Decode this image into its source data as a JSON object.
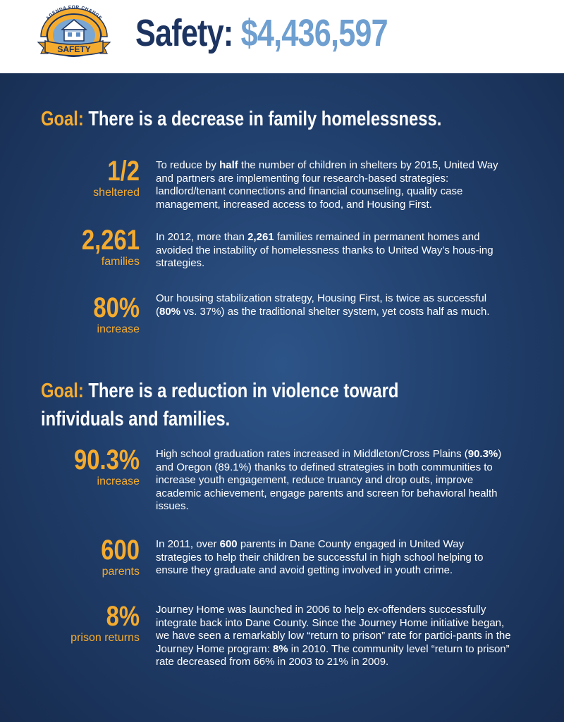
{
  "header": {
    "badge": {
      "top_text": "AGENDA FOR CHANGE",
      "label": "SAFETY"
    },
    "title_word": "Safety:",
    "title_amount": "$4,436,597"
  },
  "colors": {
    "navy": "#1d3461",
    "accent": "#f5ab2e",
    "amount_blue": "#6e9fd0",
    "bg": "#1f3a63"
  },
  "goal1": {
    "label": "Goal:",
    "text": "There is a decrease in family homelessness.",
    "stats": [
      {
        "number": "1/2",
        "unit": "sheltered",
        "pre": "To reduce by ",
        "bold": "half",
        "post": " the number of children in shelters by 2015, United Way and partners are implementing four research-based strategies: landlord/tenant connections and financial counseling, quality case management, increased access to food, and Housing First."
      },
      {
        "number": "2,261",
        "unit": "families",
        "pre": "In 2012, more than ",
        "bold": "2,261",
        "post": " families remained in permanent homes and avoided the instability of homelessness thanks to United Way’s hous-ing strategies."
      },
      {
        "number": "80%",
        "unit": "increase",
        "pre": "Our housing stabilization strategy, Housing First, is twice as successful (",
        "bold": "80%",
        "post": " vs. 37%) as the traditional shelter system, yet costs half as much."
      }
    ]
  },
  "goal2": {
    "label": "Goal:",
    "text_line1": "There is a reduction in violence toward",
    "text_line2": "infividuals and families.",
    "stats": [
      {
        "number": "90.3%",
        "unit": "increase",
        "pre": "High school graduation rates increased in Middleton/Cross Plains (",
        "bold": "90.3%",
        "post": ") and Oregon (89.1%) thanks to defined strategies in both communities to increase youth engagement, reduce truancy and drop outs, improve academic achievement, engage parents and screen for behavioral health issues."
      },
      {
        "number": "600",
        "unit": "parents",
        "pre": "In 2011, over ",
        "bold": "600",
        "post": " parents in Dane County engaged in United Way strategies to help their children be successful in high school helping to ensure they graduate and avoid getting involved in youth crime."
      },
      {
        "number": "8%",
        "unit": "prison returns",
        "pre": "Journey Home was launched in 2006 to help ex-offenders successfully integrate back into Dane County. Since the Journey Home initiative began, we have seen a remarkably low “return to prison” rate for partici-pants in the Journey Home program: ",
        "bold": "8%",
        "post": " in 2010. The community level “return to prison” rate decreased from 66% in 2003 to 21% in 2009."
      }
    ]
  }
}
